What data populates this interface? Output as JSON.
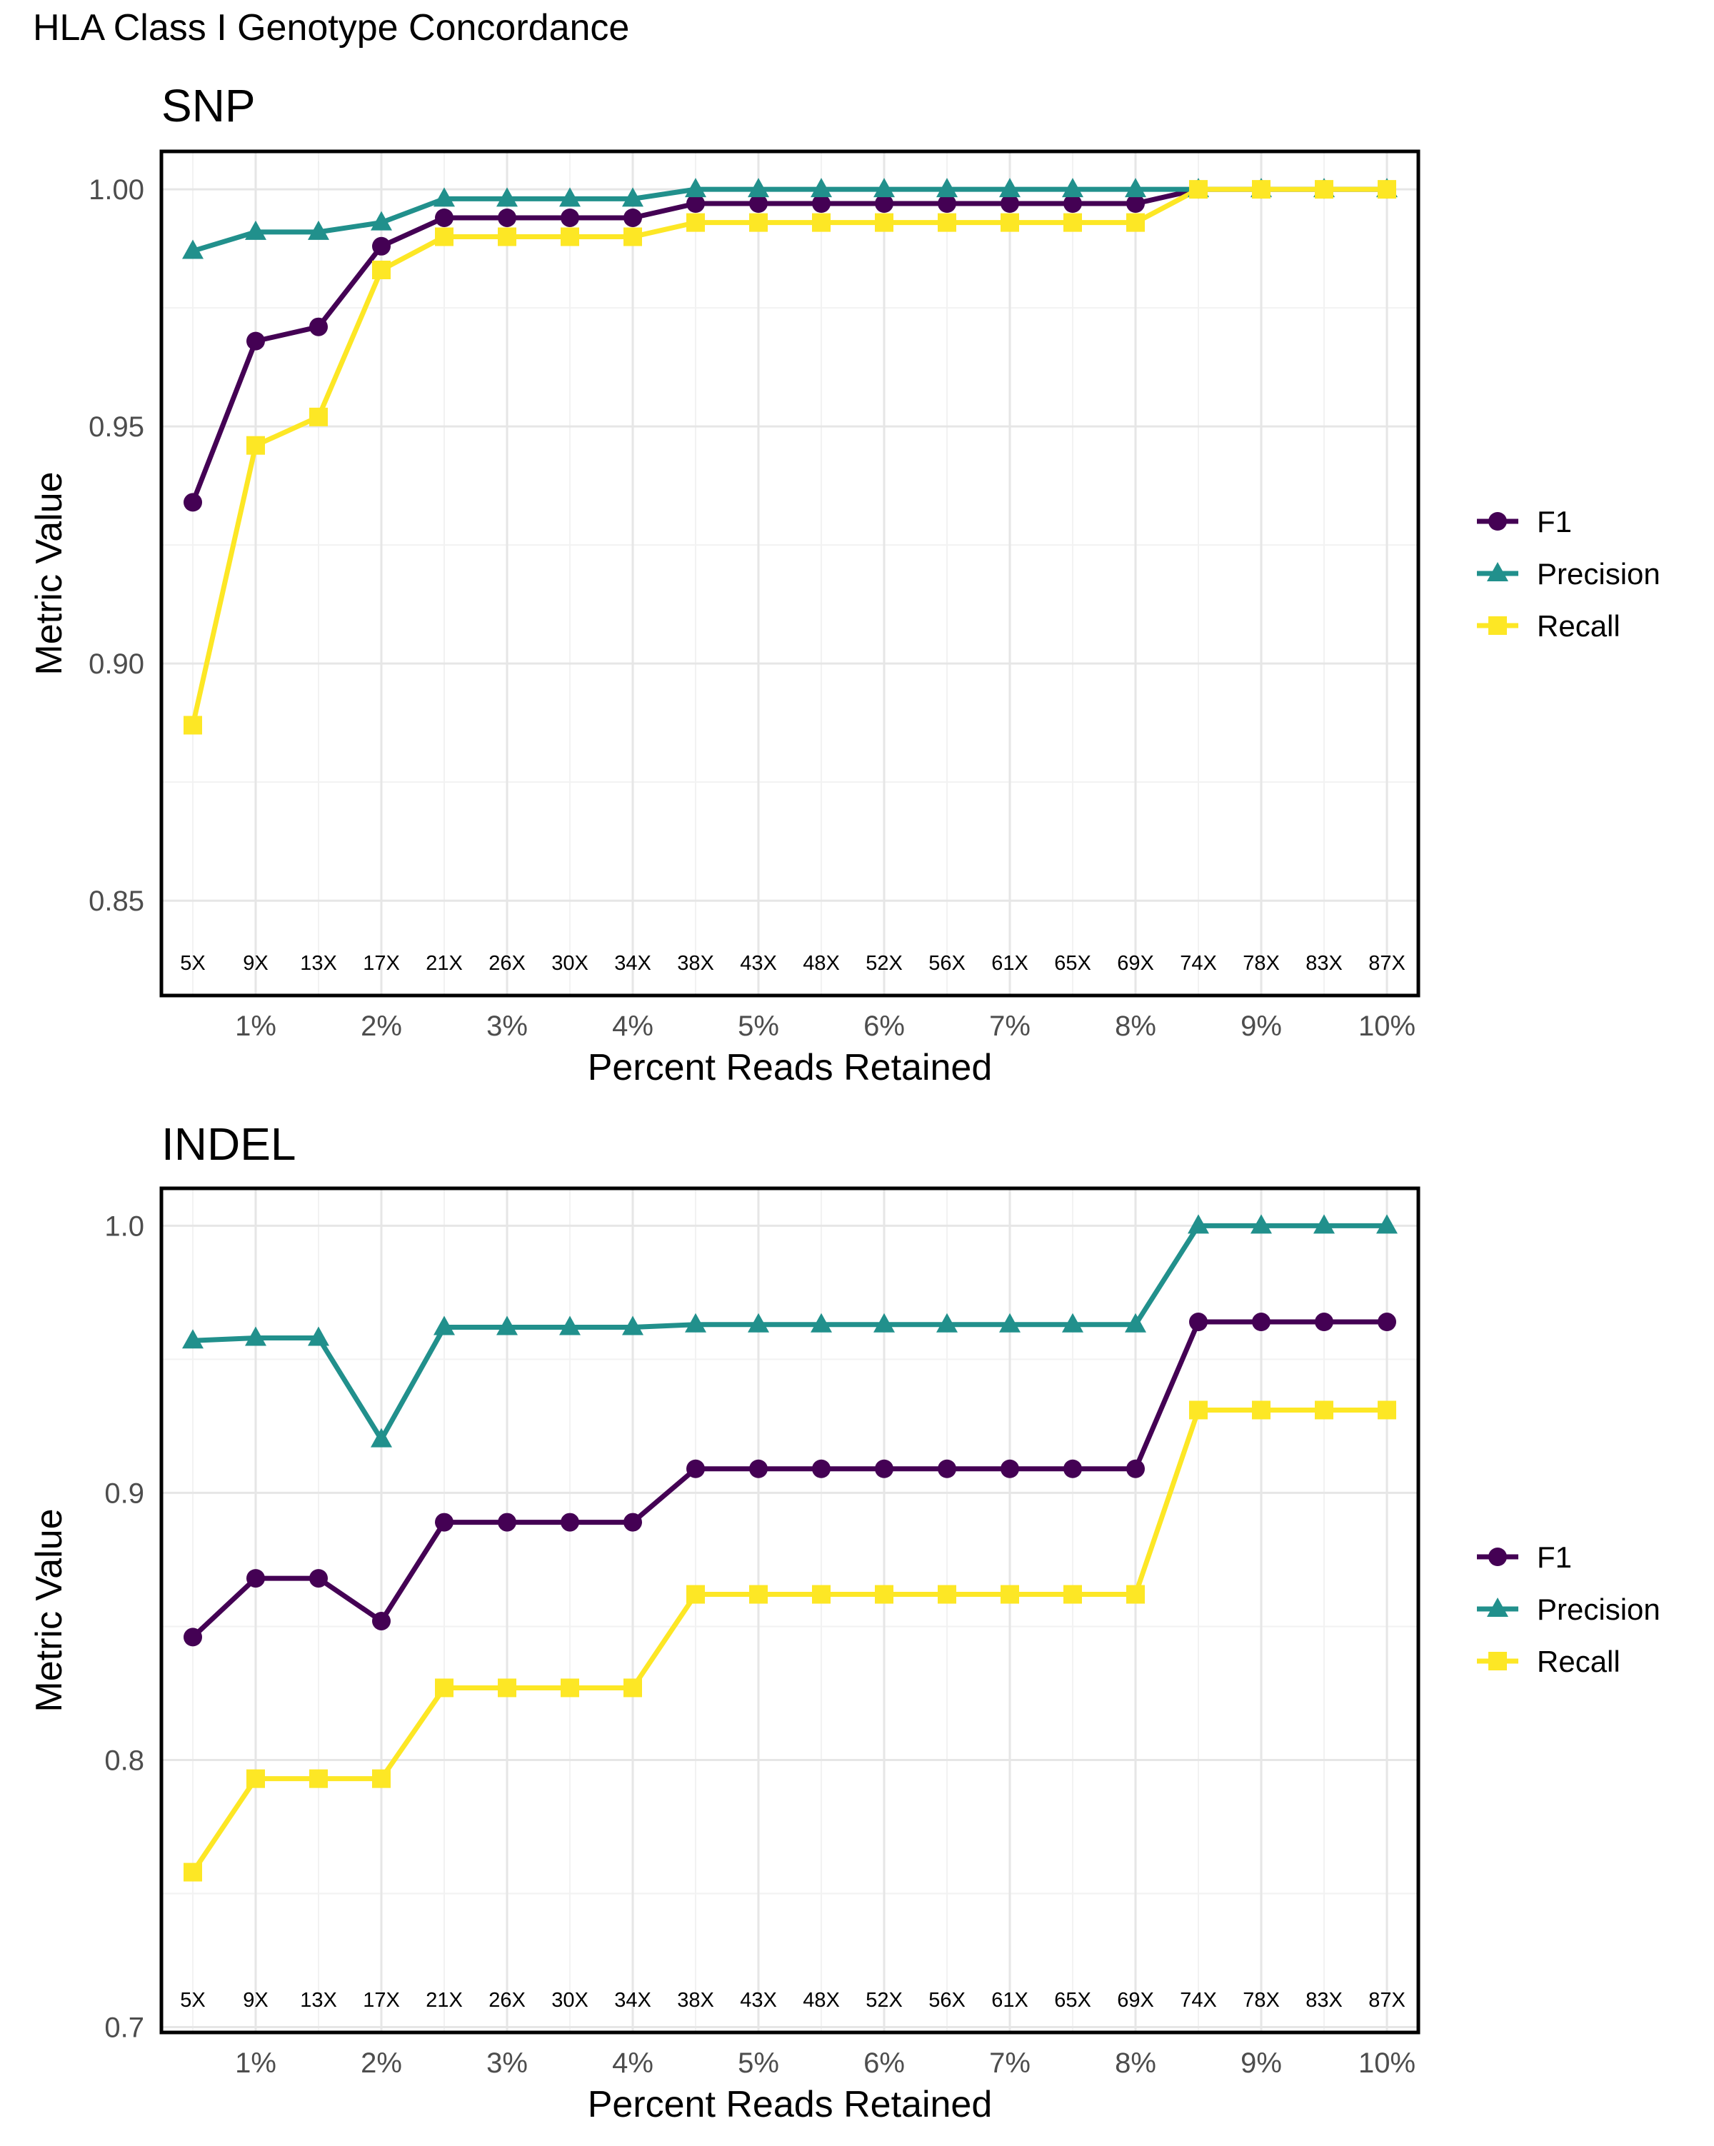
{
  "page": {
    "title": "HLA Class I Genotype Concordance"
  },
  "legend_entries": [
    {
      "name": "F1",
      "color": "#440154",
      "shape": "circle"
    },
    {
      "name": "Precision",
      "color": "#21908C",
      "shape": "triangle"
    },
    {
      "name": "Recall",
      "color": "#FDE725",
      "shape": "square"
    }
  ],
  "chart_data": [
    {
      "type": "line",
      "title": "SNP",
      "xlabel": "Percent Reads Retained",
      "ylabel": "Metric Value",
      "ylim": [
        0.83,
        1.008
      ],
      "yticks": [
        0.85,
        0.9,
        0.95,
        1.0
      ],
      "ytick_labels": [
        "0.85",
        "0.90",
        "0.95",
        "1.00"
      ],
      "x_tick_positions": [
        1,
        2,
        3,
        4,
        5,
        6,
        7,
        8,
        9,
        10
      ],
      "x_tick_labels": [
        "1%",
        "2%",
        "3%",
        "4%",
        "5%",
        "6%",
        "7%",
        "8%",
        "9%",
        "10%"
      ],
      "x": [
        0.5,
        1,
        1.5,
        2,
        2.5,
        3,
        3.5,
        4,
        4.5,
        5,
        5.5,
        6,
        6.5,
        7,
        7.5,
        8,
        8.5,
        9,
        9.5,
        10
      ],
      "depth_labels": [
        "5X",
        "9X",
        "13X",
        "17X",
        "21X",
        "26X",
        "30X",
        "34X",
        "38X",
        "43X",
        "48X",
        "52X",
        "56X",
        "61X",
        "65X",
        "69X",
        "74X",
        "78X",
        "83X",
        "87X"
      ],
      "grid": true,
      "legend_position": "right",
      "series": [
        {
          "name": "F1",
          "values": [
            0.934,
            0.968,
            0.971,
            0.988,
            0.994,
            0.994,
            0.994,
            0.994,
            0.997,
            0.997,
            0.997,
            0.997,
            0.997,
            0.997,
            0.997,
            0.997,
            1.0,
            1.0,
            1.0,
            1.0
          ]
        },
        {
          "name": "Precision",
          "values": [
            0.987,
            0.991,
            0.991,
            0.993,
            0.998,
            0.998,
            0.998,
            0.998,
            1.0,
            1.0,
            1.0,
            1.0,
            1.0,
            1.0,
            1.0,
            1.0,
            1.0,
            1.0,
            1.0,
            1.0
          ]
        },
        {
          "name": "Recall",
          "values": [
            0.887,
            0.946,
            0.952,
            0.983,
            0.99,
            0.99,
            0.99,
            0.99,
            0.993,
            0.993,
            0.993,
            0.993,
            0.993,
            0.993,
            0.993,
            0.993,
            1.0,
            1.0,
            1.0,
            1.0
          ]
        }
      ]
    },
    {
      "type": "line",
      "title": "INDEL",
      "xlabel": "Percent Reads Retained",
      "ylabel": "Metric Value",
      "ylim": [
        0.698,
        1.014
      ],
      "yticks": [
        0.7,
        0.8,
        0.9,
        1.0
      ],
      "ytick_labels": [
        "0.7",
        "0.8",
        "0.9",
        "1.0"
      ],
      "x_tick_positions": [
        1,
        2,
        3,
        4,
        5,
        6,
        7,
        8,
        9,
        10
      ],
      "x_tick_labels": [
        "1%",
        "2%",
        "3%",
        "4%",
        "5%",
        "6%",
        "7%",
        "8%",
        "9%",
        "10%"
      ],
      "x": [
        0.5,
        1,
        1.5,
        2,
        2.5,
        3,
        3.5,
        4,
        4.5,
        5,
        5.5,
        6,
        6.5,
        7,
        7.5,
        8,
        8.5,
        9,
        9.5,
        10
      ],
      "depth_labels": [
        "5X",
        "9X",
        "13X",
        "17X",
        "21X",
        "26X",
        "30X",
        "34X",
        "38X",
        "43X",
        "48X",
        "52X",
        "56X",
        "61X",
        "65X",
        "69X",
        "74X",
        "78X",
        "83X",
        "87X"
      ],
      "grid": true,
      "legend_position": "right",
      "series": [
        {
          "name": "F1",
          "values": [
            0.846,
            0.868,
            0.868,
            0.852,
            0.889,
            0.889,
            0.889,
            0.889,
            0.909,
            0.909,
            0.909,
            0.909,
            0.909,
            0.909,
            0.909,
            0.909,
            0.964,
            0.964,
            0.964,
            0.964
          ]
        },
        {
          "name": "Precision",
          "values": [
            0.957,
            0.958,
            0.958,
            0.92,
            0.962,
            0.962,
            0.962,
            0.962,
            0.963,
            0.963,
            0.963,
            0.963,
            0.963,
            0.963,
            0.963,
            0.963,
            1.0,
            1.0,
            1.0,
            1.0
          ]
        },
        {
          "name": "Recall",
          "values": [
            0.758,
            0.793,
            0.793,
            0.793,
            0.827,
            0.827,
            0.827,
            0.827,
            0.862,
            0.862,
            0.862,
            0.862,
            0.862,
            0.862,
            0.862,
            0.862,
            0.931,
            0.931,
            0.931,
            0.931
          ]
        }
      ]
    }
  ]
}
